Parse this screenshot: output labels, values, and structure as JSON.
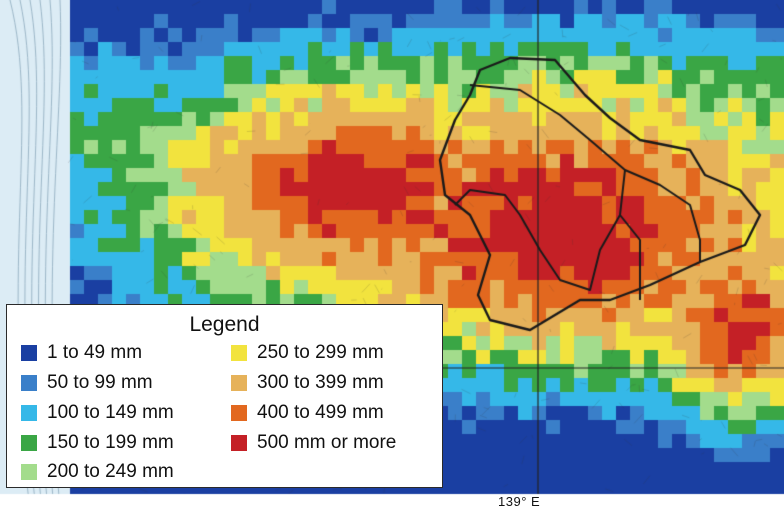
{
  "legend": {
    "title": "Legend",
    "items": [
      {
        "label": "1 to 49 mm",
        "color": "#1a3fa2"
      },
      {
        "label": "50 to 99 mm",
        "color": "#3a7fc9"
      },
      {
        "label": "100 to 149 mm",
        "color": "#35b8e8"
      },
      {
        "label": "150 to 199 mm",
        "color": "#3aa645"
      },
      {
        "label": "200 to 249 mm",
        "color": "#a3dc8c"
      },
      {
        "label": "250 to 299 mm",
        "color": "#f2e33e"
      },
      {
        "label": "300 to 399 mm",
        "color": "#e6b25a"
      },
      {
        "label": "400 to 499 mm",
        "color": "#e2681f"
      },
      {
        "label": "500 mm or more",
        "color": "#c42026"
      }
    ]
  },
  "map": {
    "longitude_label": "139° E",
    "sea_color": "#dcecf5",
    "boundary_color": "#1a1a1a"
  }
}
